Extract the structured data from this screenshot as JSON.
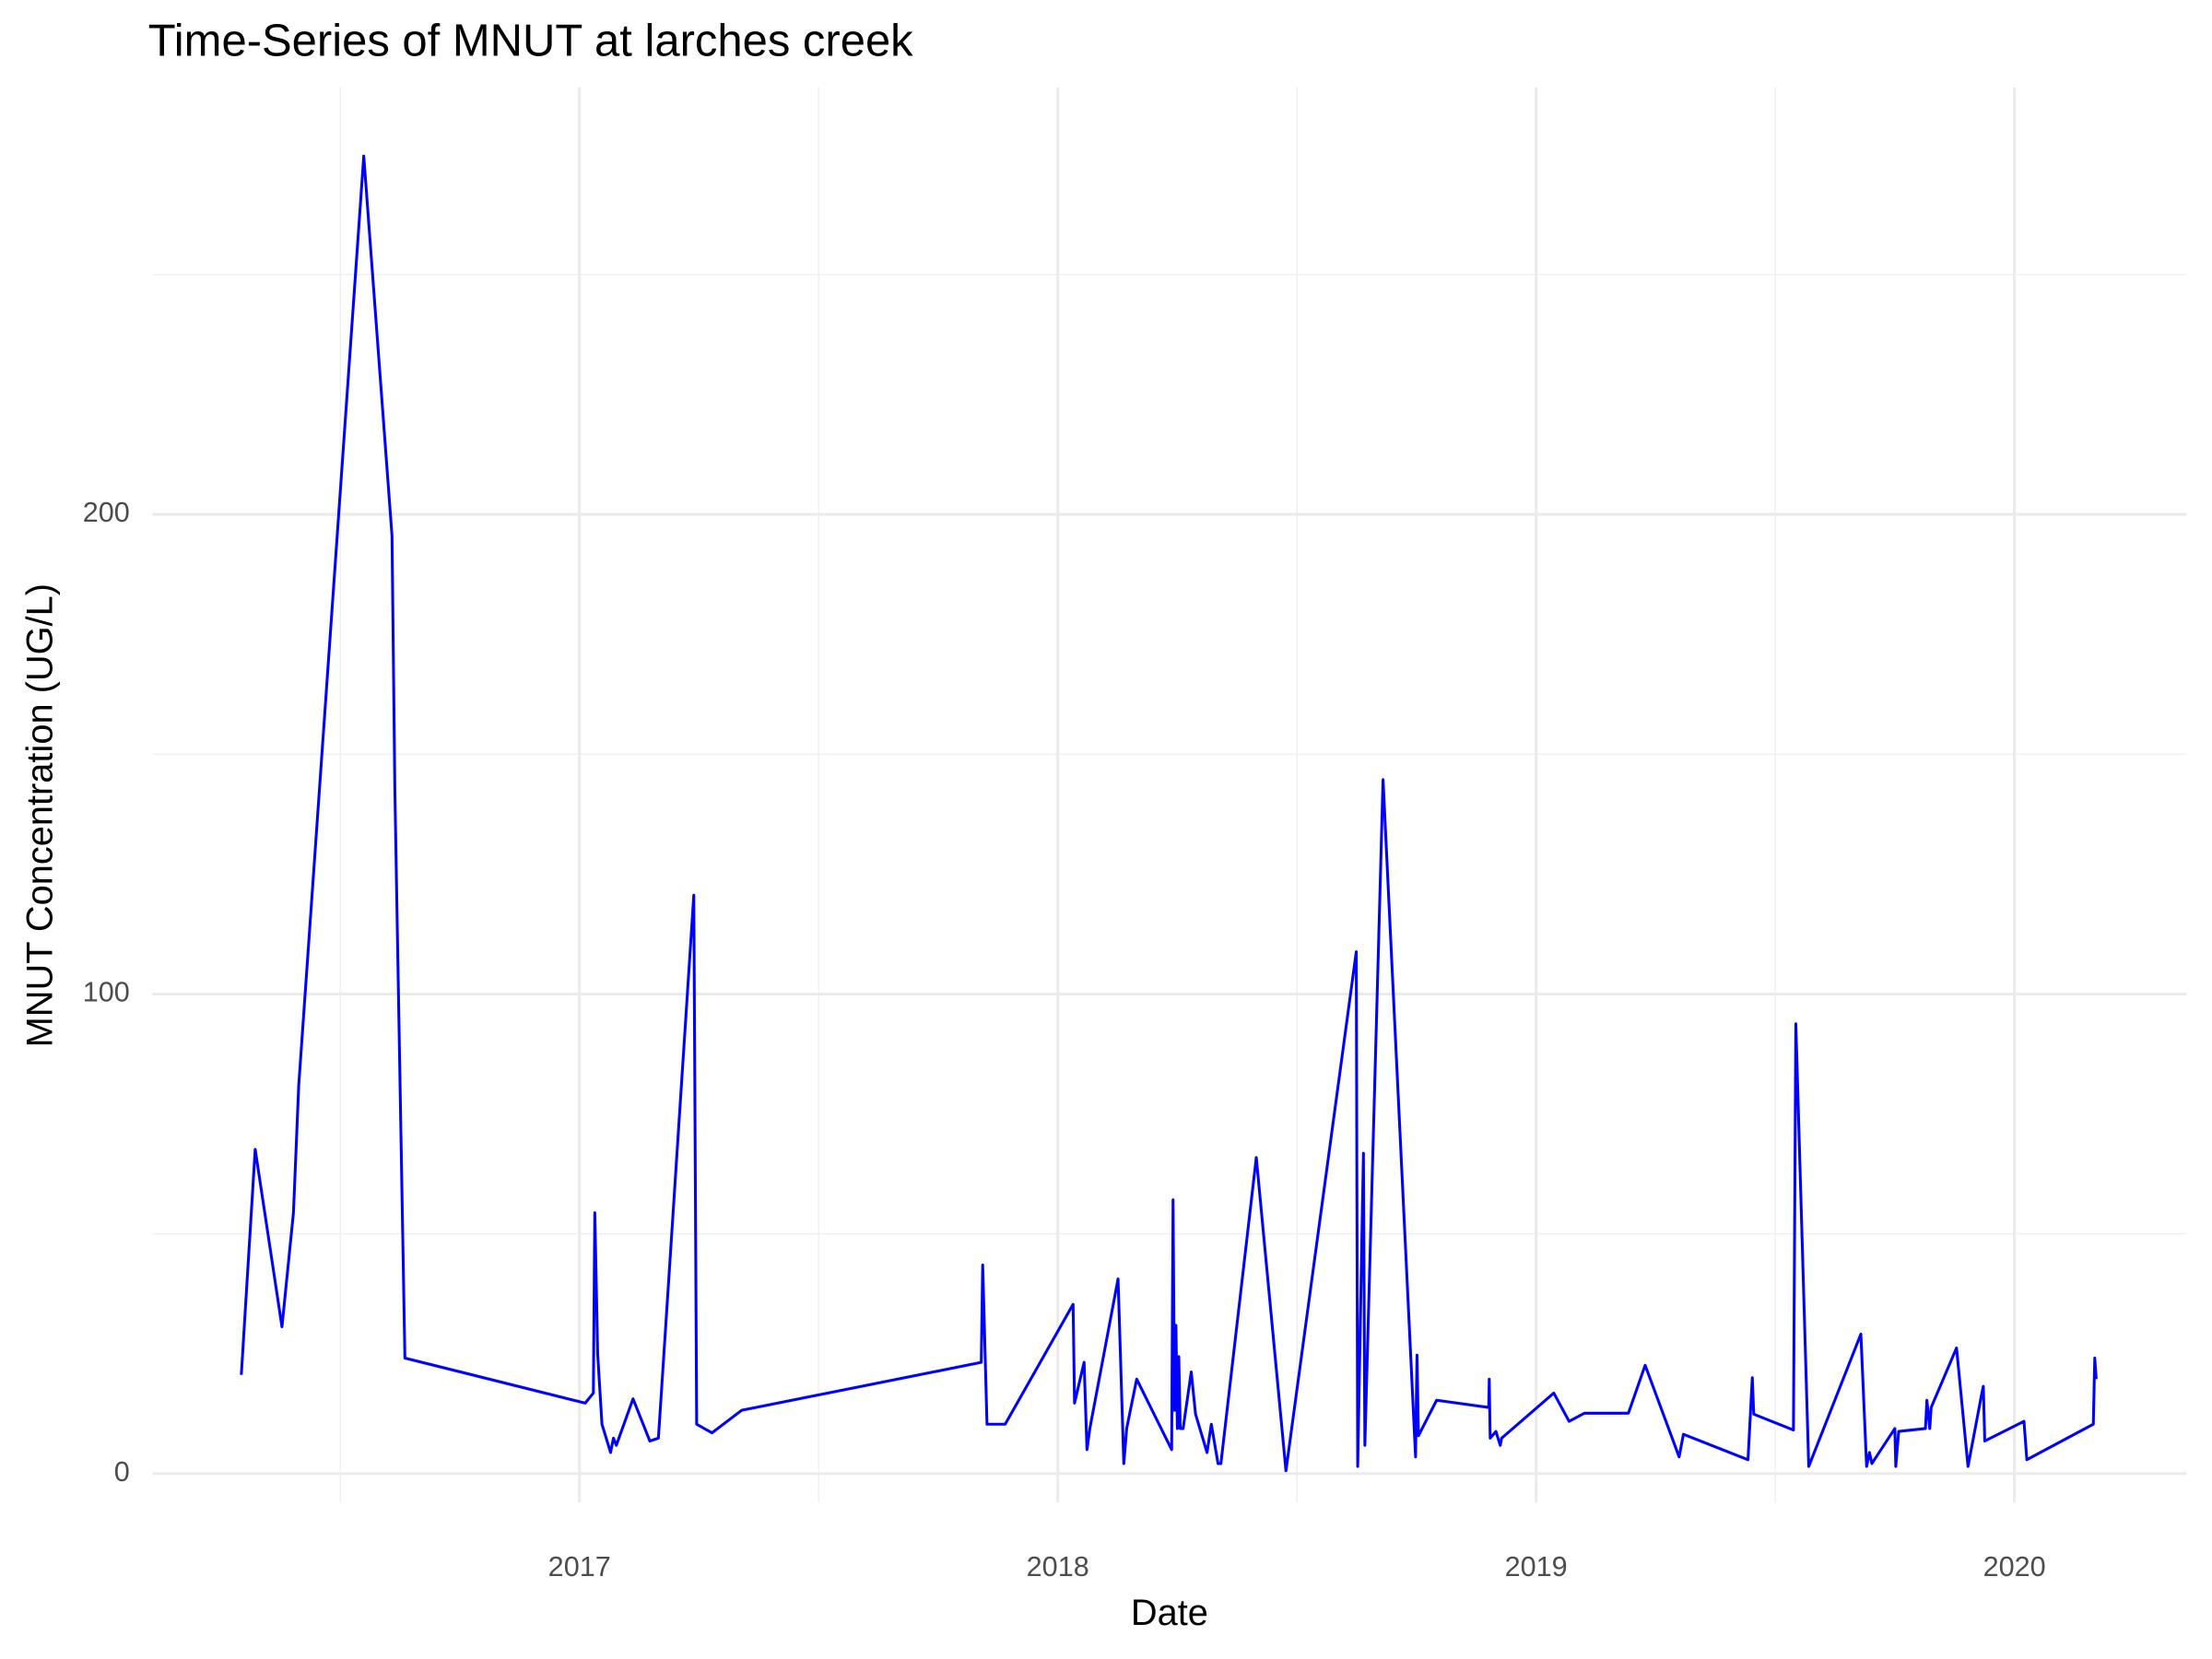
{
  "chart_data": {
    "type": "line",
    "title": "Time-Series of MNUT at larches creek",
    "x_label": "Date",
    "y_label": "MNUT Concentration (UG/L)",
    "x": [
      2016.293,
      2016.322,
      2016.378,
      2016.402,
      2016.413,
      2016.549,
      2016.608,
      2016.614,
      2016.635,
      2017.012,
      2017.029,
      2017.032,
      2017.038,
      2017.047,
      2017.065,
      2017.071,
      2017.077,
      2017.112,
      2017.147,
      2017.165,
      2017.239,
      2017.245,
      2017.277,
      2017.339,
      2017.84,
      2017.843,
      2017.852,
      2017.89,
      2018.032,
      2018.035,
      2018.055,
      2018.061,
      2018.067,
      2018.126,
      2018.138,
      2018.144,
      2018.165,
      2018.238,
      2018.241,
      2018.244,
      2018.247,
      2018.25,
      2018.253,
      2018.256,
      2018.262,
      2018.279,
      2018.288,
      2018.312,
      2018.321,
      2018.335,
      2018.341,
      2018.415,
      2018.477,
      2018.624,
      2018.627,
      2018.639,
      2018.642,
      2018.68,
      2018.748,
      2018.751,
      2018.754,
      2018.792,
      2018.901,
      2018.902,
      2018.904,
      2018.916,
      2018.925,
      2018.928,
      2019.037,
      2019.069,
      2019.101,
      2019.193,
      2019.228,
      2019.299,
      2019.308,
      2019.443,
      2019.452,
      2019.455,
      2019.538,
      2019.543,
      2019.57,
      2019.679,
      2019.691,
      2019.697,
      2019.702,
      2019.75,
      2019.752,
      2019.758,
      2019.814,
      2019.817,
      2019.823,
      2019.826,
      2019.879,
      2019.903,
      2019.932,
      2019.935,
      2019.938,
      2020.02,
      2020.026,
      2020.165,
      2020.168,
      2020.171
    ],
    "series": [
      {
        "name": "MNUT",
        "color": "#0000ff",
        "values": [
          20.6,
          67.6,
          30.6,
          54.4,
          80.9,
          274.7,
          195.6,
          142.6,
          24.1,
          14.7,
          16.8,
          54.4,
          25,
          10.3,
          4.4,
          7.4,
          5.9,
          15.6,
          6.8,
          7.4,
          120.6,
          10.3,
          8.5,
          13.2,
          23.2,
          43.5,
          10.3,
          10.3,
          35.3,
          14.7,
          23.2,
          5,
          9.4,
          40.6,
          2.1,
          9.4,
          19.7,
          5,
          57.1,
          13.2,
          30.9,
          9.4,
          24.4,
          9.4,
          9.4,
          21.2,
          12.4,
          4.4,
          10.3,
          2.1,
          2.1,
          65.9,
          0.6,
          108.8,
          1.5,
          66.8,
          5.9,
          144.7,
          3.5,
          24.7,
          7.9,
          15.3,
          13.8,
          19.7,
          7.4,
          8.8,
          5.9,
          7.4,
          16.8,
          10.9,
          12.6,
          12.6,
          22.6,
          3.5,
          8.2,
          2.9,
          20,
          12.4,
          9.1,
          93.8,
          1.5,
          29.1,
          1.5,
          4.4,
          2.1,
          9.4,
          1.5,
          8.8,
          9.4,
          15.3,
          9.4,
          13.8,
          26.2,
          1.5,
          16.8,
          18.2,
          6.8,
          10.9,
          2.9,
          10.3,
          24.1,
          19.7
        ]
      }
    ],
    "xlim": [
      2016.107,
      2020.36
    ],
    "xticks": [
      2017,
      2018,
      2019,
      2020
    ],
    "ylim": [
      -6,
      289
    ],
    "yticks": [
      0,
      100,
      200
    ],
    "grid": true
  }
}
